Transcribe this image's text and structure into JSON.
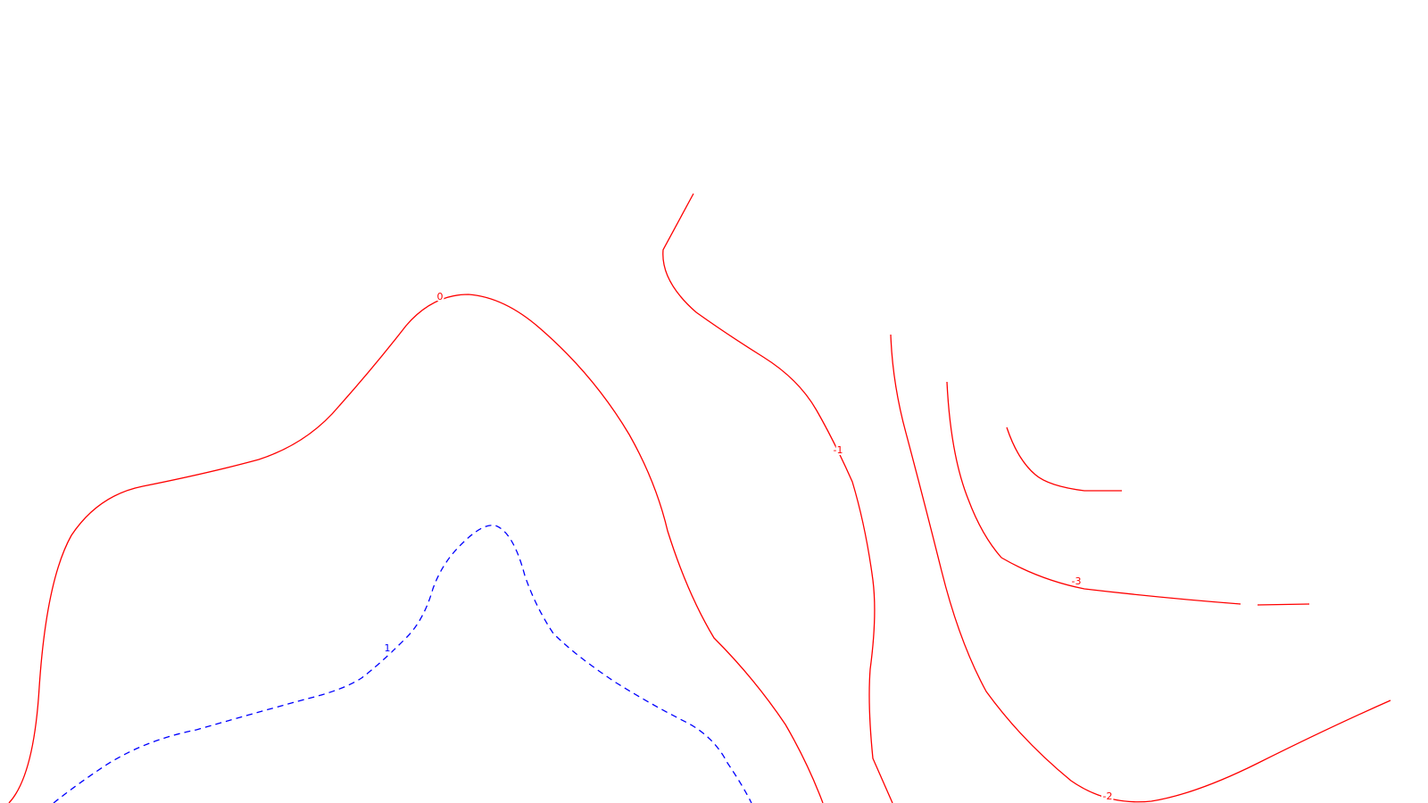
{
  "chart_data": {
    "type": "contour",
    "colors": {
      "positive": "#0000ff",
      "nonpositive": "#ff0000"
    },
    "line_styles": {
      "positive": "dashed",
      "nonpositive": "solid"
    },
    "contours": [
      {
        "level": "0",
        "sign": "nonpositive",
        "labelled": true
      },
      {
        "level": "-1",
        "sign": "nonpositive",
        "labelled": true
      },
      {
        "level": "-2",
        "sign": "nonpositive",
        "labelled": true
      },
      {
        "level": "-3",
        "sign": "nonpositive",
        "labelled": true
      },
      {
        "level": "1",
        "sign": "positive",
        "labelled": true
      }
    ],
    "legend": false,
    "grid": false
  }
}
